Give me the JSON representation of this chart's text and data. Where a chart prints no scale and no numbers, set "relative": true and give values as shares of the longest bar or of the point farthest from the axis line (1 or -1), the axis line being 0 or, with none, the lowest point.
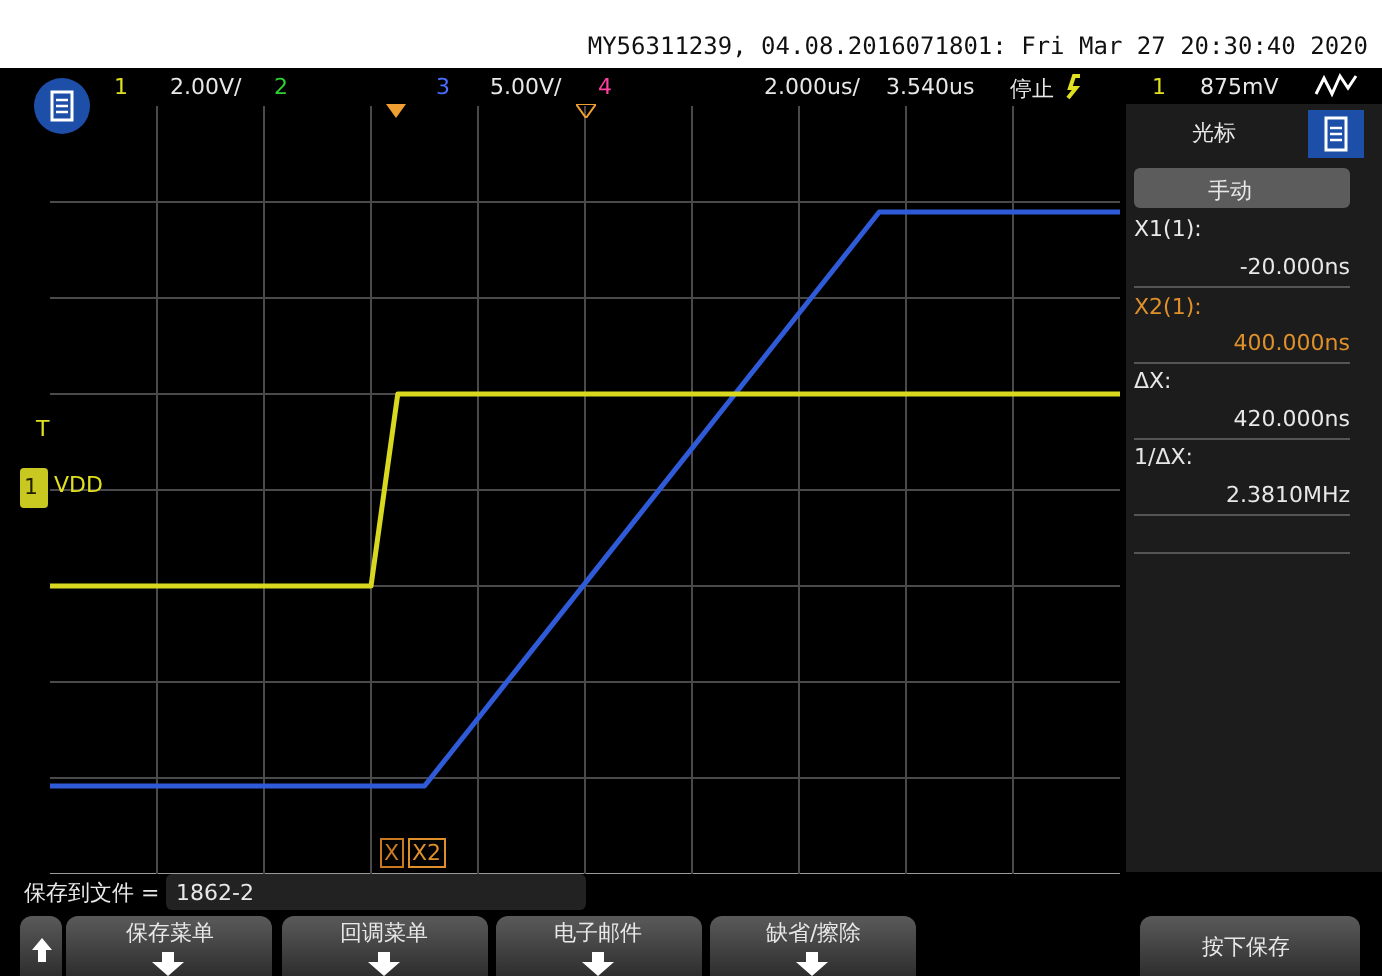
{
  "chart_data": {
    "type": "line",
    "title": "MY56311239, 04.08.2016071801: Fri Mar 27 20:30:40 2020",
    "relative": true,
    "categories": [
      null,
      null,
      null,
      null,
      null,
      null,
      null,
      null,
      null,
      null,
      null,
      null,
      null,
      null,
      null,
      null,
      null,
      null,
      null,
      null,
      null,
      null,
      null,
      null,
      null,
      null,
      null,
      null,
      null,
      null,
      null,
      null,
      null,
      null,
      null,
      null,
      null,
      null,
      null,
      null,
      null
    ],
    "grid": true,
    "legend": false,
    "marker": "none",
    "series": [
      {
        "type": "line",
        "color": "#d8d820",
        "values": [
          0.435,
          0.435,
          0.435,
          0.435,
          0.435,
          0.435,
          0.435,
          0.435,
          0.435,
          0.435,
          0.435,
          0.435,
          0.435,
          0.725,
          0.725,
          0.725,
          0.725,
          0.725,
          0.725,
          0.725,
          0.725,
          0.725,
          0.725,
          0.725,
          0.725,
          0.725,
          0.725,
          0.725,
          0.725,
          0.725,
          0.725,
          0.725,
          0.725,
          0.725,
          0.725,
          0.725,
          0.725,
          0.725,
          0.725,
          0.725,
          0.725
        ]
      },
      {
        "type": "line",
        "color": "#2f5bd8",
        "values": [
          0.133,
          0.133,
          0.133,
          0.133,
          0.133,
          0.133,
          0.133,
          0.133,
          0.133,
          0.133,
          0.133,
          0.133,
          0.133,
          0.133,
          0.133,
          0.184,
          0.235,
          0.286,
          0.337,
          0.388,
          0.439,
          0.49,
          0.541,
          0.592,
          0.643,
          0.694,
          0.745,
          0.796,
          0.847,
          0.898,
          0.949,
          1,
          1,
          1,
          1,
          1,
          1,
          1,
          1,
          1,
          1
        ]
      }
    ],
    "annotations": [
      "1",
      "2.00V/",
      "2",
      "3",
      "5.00V/",
      "4",
      "2.000us/",
      "3.540us",
      "停止",
      "1",
      "875mV",
      "光标",
      "手动",
      "X1(1):",
      "-20.000ns",
      "X2(1):",
      "400.000ns",
      "ΔX:",
      "420.000ns",
      "1/ΔX:",
      "2.3810MHz",
      "保存到文件 =",
      "1862-2",
      "保存菜单",
      "回调菜单",
      "电子邮件",
      "缺省/擦除",
      "按下保存",
      "T",
      "1",
      "VDD",
      "X",
      "X2"
    ]
  }
}
